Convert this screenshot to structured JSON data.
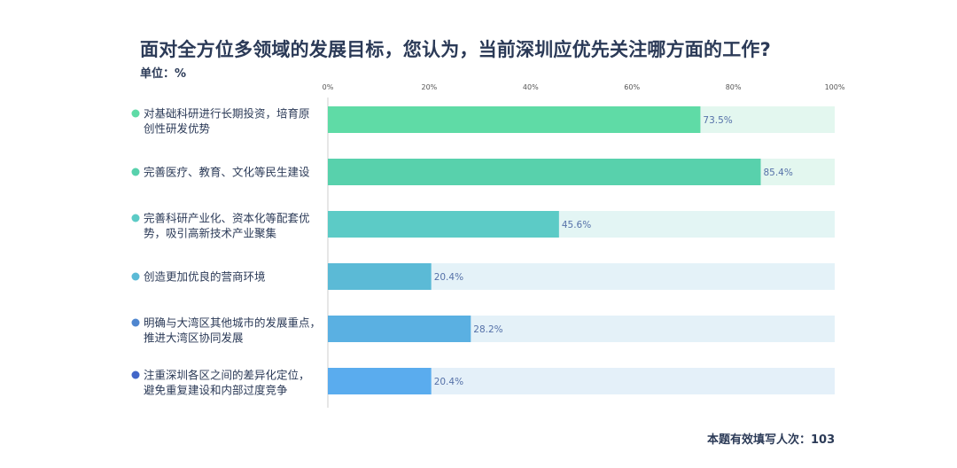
{
  "title": "面对全方位多领域的发展目标，您认为，当前深圳应优先关注哪方面的工作?",
  "unit": "单位：%",
  "footer": "本题有效填写人次：103",
  "chart_data": {
    "type": "bar",
    "orientation": "horizontal",
    "title": "面对全方位多领域的发展目标，您认为，当前深圳应优先关注哪方面的工作?",
    "unit": "%",
    "xlim": [
      0,
      100
    ],
    "xticks": [
      "0%",
      "20%",
      "40%",
      "60%",
      "80%",
      "100%"
    ],
    "xtick_values": [
      0,
      20,
      40,
      60,
      80,
      100
    ],
    "categories": [
      [
        "对基础科研进行长期投资，培育原",
        "创性研发优势"
      ],
      [
        "完善医疗、教育、文化等民生建设"
      ],
      [
        "完善科研产业化、资本化等配套优",
        "势，吸引高新技术产业聚集"
      ],
      [
        "创造更加优良的营商环境"
      ],
      [
        "明确与大湾区其他城市的发展重点，",
        "推进大湾区协同发展"
      ],
      [
        "注重深圳各区之间的差异化定位，",
        "避免重复建设和内部过度竞争"
      ]
    ],
    "values": [
      73.5,
      85.4,
      45.6,
      20.4,
      28.2,
      20.4
    ],
    "value_labels": [
      "73.5%",
      "85.4%",
      "45.6%",
      "20.4%",
      "28.2%",
      "20.4%"
    ],
    "bar_colors": [
      "#5fdba6",
      "#58d1ac",
      "#5ccbc6",
      "#5bbad6",
      "#5ab0e2",
      "#5aacee"
    ],
    "dot_colors": [
      "#5fdba6",
      "#58d1ac",
      "#5ccbc6",
      "#5bbad6",
      "#4f86cf",
      "#4266c8"
    ],
    "track_colors": [
      "#e3f7ef",
      "#e3f7ef",
      "#e3f5f4",
      "#e4f2f8",
      "#e4f1f8",
      "#e4f0f9"
    ],
    "grid": false,
    "legend": "none"
  }
}
